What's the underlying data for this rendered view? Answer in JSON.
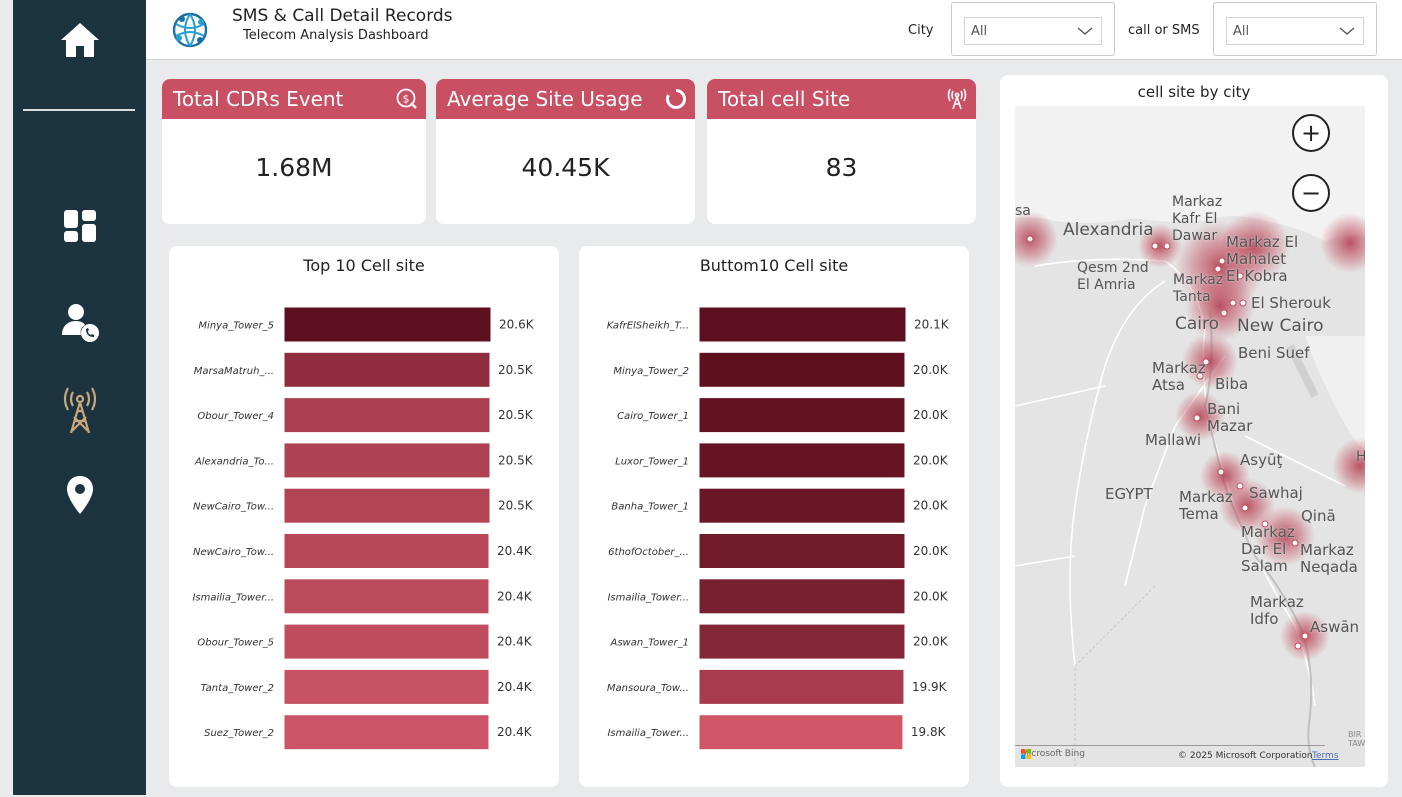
{
  "sidebar": {
    "items": [
      {
        "name": "home-icon",
        "color": "#ffffff"
      },
      {
        "name": "dashboard-icon",
        "color": "#ffffff"
      },
      {
        "name": "user-call-icon",
        "color": "#ffffff"
      },
      {
        "name": "cell-tower-icon",
        "color": "#c9a77a"
      },
      {
        "name": "location-pin-icon",
        "color": "#ffffff"
      }
    ]
  },
  "header": {
    "title": "SMS & Call Detail Records",
    "subtitle": "Telecom Analysis Dashboard",
    "filters": [
      {
        "label": "City",
        "value": "All"
      },
      {
        "label": "call or SMS",
        "value": "All"
      }
    ]
  },
  "kpis": [
    {
      "title": "Total CDRs Event",
      "value": "1.68M",
      "icon": "money-search-icon"
    },
    {
      "title": "Average Site Usage",
      "value": "40.45K",
      "icon": "ring-progress-icon"
    },
    {
      "title": "Total cell Site",
      "value": "83",
      "icon": "antenna-icon"
    }
  ],
  "colors": {
    "accent": "#c94f62",
    "sidebar": "#1c3340",
    "bar_dark": "#5c0f1e",
    "bar_light": "#cf5567"
  },
  "chart_data": [
    {
      "type": "bar",
      "orientation": "horizontal",
      "title": "Top 10 Cell site",
      "categories": [
        "Minya_Tower_5",
        "MarsaMatruh_...",
        "Obour_Tower_4",
        "Alexandria_To...",
        "NewCairo_Tow...",
        "NewCairo_Tow...",
        "Ismailia_Tower...",
        "Obour_Tower_5",
        "Tanta_Tower_2",
        "Suez_Tower_2"
      ],
      "values": [
        20600,
        20500,
        20500,
        20500,
        20500,
        20400,
        20400,
        20400,
        20400,
        20400
      ],
      "labels": [
        "20.6K",
        "20.5K",
        "20.5K",
        "20.5K",
        "20.5K",
        "20.4K",
        "20.4K",
        "20.4K",
        "20.4K",
        "20.4K"
      ],
      "colors": [
        "#5c0f1e",
        "#8f2c3e",
        "#ad4050",
        "#af4252",
        "#b24454",
        "#b84858",
        "#bb4a5a",
        "#c04d5e",
        "#c65263",
        "#cb5567"
      ],
      "xlim": [
        0,
        20600
      ]
    },
    {
      "type": "bar",
      "orientation": "horizontal",
      "title": "Buttom10 Cell site",
      "categories": [
        "KafrElSheikh_T...",
        "Minya_Tower_2",
        "Cairo_Tower_1",
        "Luxor_Tower_1",
        "Banha_Tower_1",
        "6thofOctober_...",
        "Ismailia_Tower...",
        "Aswan_Tower_1",
        "Mansoura_Tow...",
        "Ismailia_Tower..."
      ],
      "values": [
        20100,
        20000,
        20000,
        20000,
        20000,
        20000,
        20000,
        20000,
        19900,
        19800
      ],
      "labels": [
        "20.1K",
        "20.0K",
        "20.0K",
        "20.0K",
        "20.0K",
        "20.0K",
        "20.0K",
        "20.0K",
        "19.9K",
        "19.8K"
      ],
      "colors": [
        "#5c0f1e",
        "#5f101f",
        "#621221",
        "#661423",
        "#6a1626",
        "#701a2a",
        "#781f30",
        "#842736",
        "#a63c4d",
        "#cf5567"
      ],
      "xlim": [
        0,
        20100
      ]
    }
  ],
  "map": {
    "title": "cell site by city",
    "labels": [
      {
        "text": "Alexandria",
        "cls": "big"
      },
      {
        "text": "Markaz\nKafr El\nDawar",
        "cls": "small"
      },
      {
        "text": "Markaz El\nMahalet\nEl Kobra",
        "cls": ""
      },
      {
        "text": "Qesm 2nd\nEl Amria",
        "cls": "small"
      },
      {
        "text": "Markaz\nTanta",
        "cls": "small"
      },
      {
        "text": "El Sherouk",
        "cls": ""
      },
      {
        "text": "Cairo",
        "cls": "big"
      },
      {
        "text": "New Cairo",
        "cls": "big"
      },
      {
        "text": "Beni Suef",
        "cls": ""
      },
      {
        "text": "Markaz\nAtsa",
        "cls": ""
      },
      {
        "text": "Biba",
        "cls": ""
      },
      {
        "text": "Bani\nMazar",
        "cls": ""
      },
      {
        "text": "Mallawi",
        "cls": ""
      },
      {
        "text": "Asyūţ",
        "cls": ""
      },
      {
        "text": "EGYPT",
        "cls": ""
      },
      {
        "text": "Markaz\nTema",
        "cls": ""
      },
      {
        "text": "Sawhaj",
        "cls": ""
      },
      {
        "text": "Qinā",
        "cls": ""
      },
      {
        "text": "Markaz\nDar El\nSalam",
        "cls": ""
      },
      {
        "text": "Markaz\nNeqada",
        "cls": ""
      },
      {
        "text": "Markaz\nIdfo",
        "cls": ""
      },
      {
        "text": "Aswān",
        "cls": ""
      },
      {
        "text": "sa",
        "cls": ""
      },
      {
        "text": "H",
        "cls": ""
      }
    ],
    "brand": "Microsoft Bing",
    "copyright": "© 2025 Microsoft Corporation",
    "terms": "Terms",
    "edge_text": "BIR\nTAWIL",
    "zoom_in": "+",
    "zoom_out": "−"
  }
}
